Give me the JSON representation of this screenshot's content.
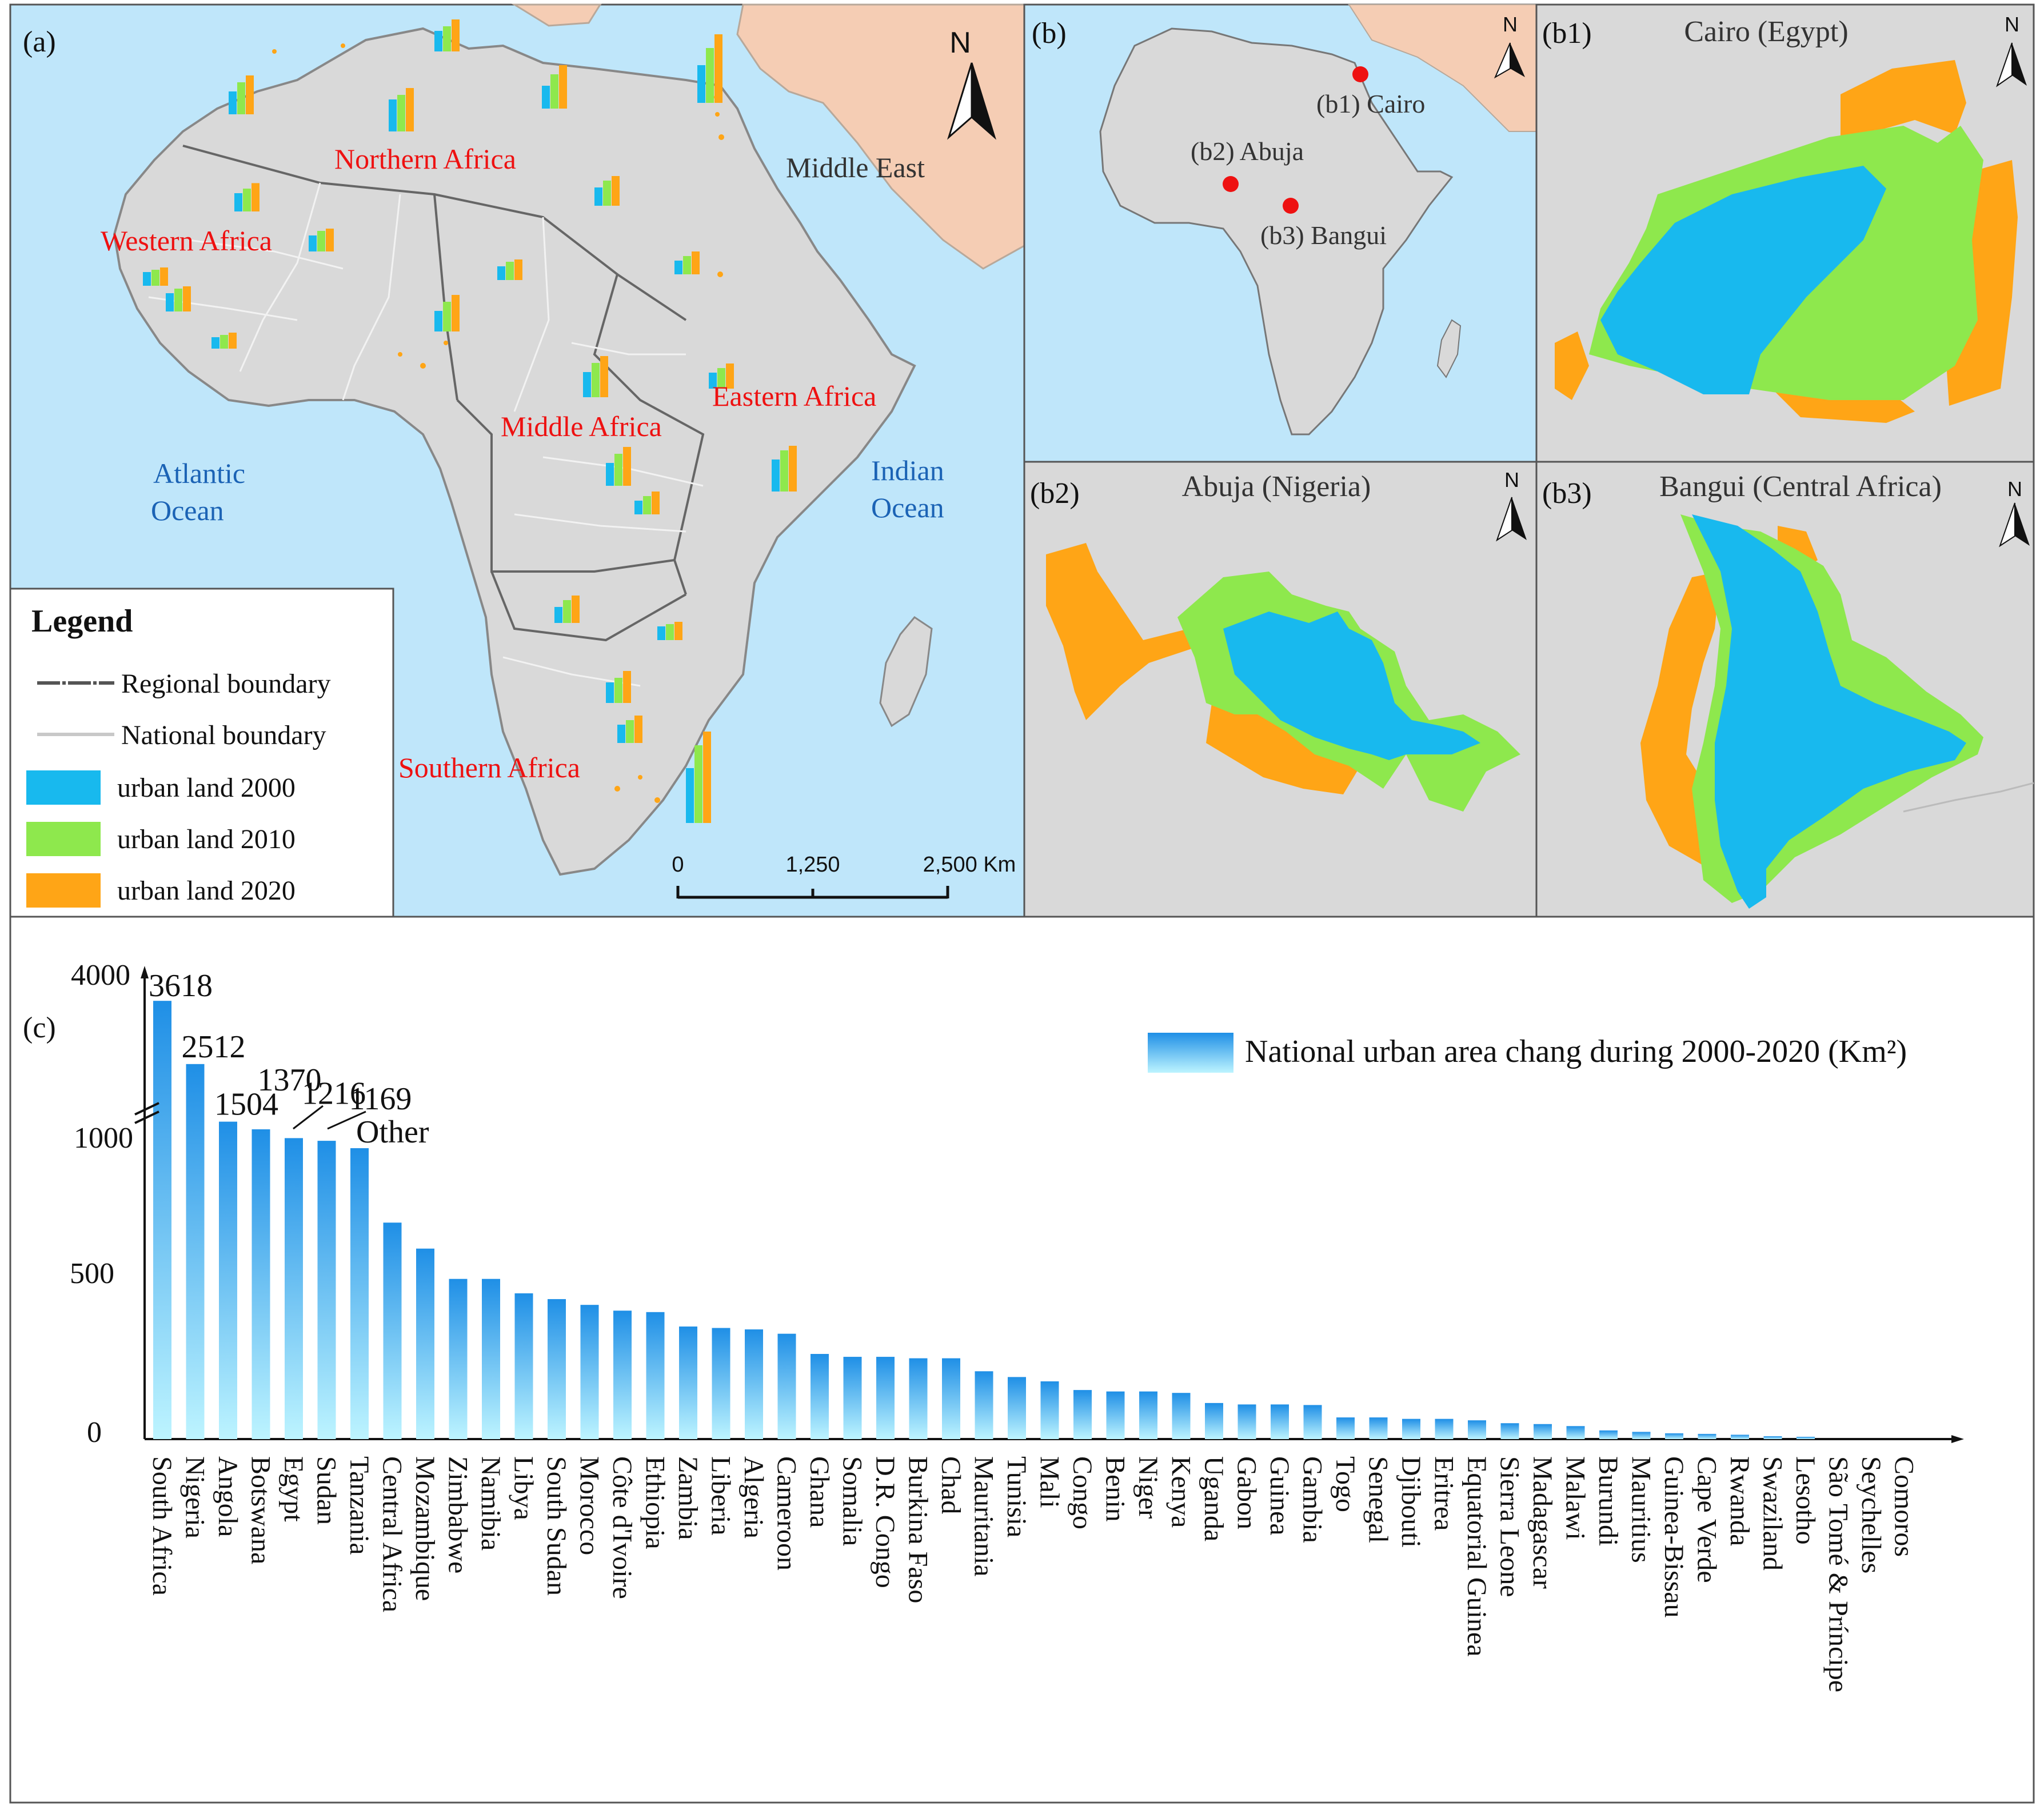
{
  "colors": {
    "ocean": "#bfe6fa",
    "land": "#d9d9d9",
    "middle_east": "#f5cdb4",
    "urban2000": "#18b9ee",
    "urban2010": "#8ee84d",
    "urban2020": "#ffa516",
    "region_label": "#ee1111",
    "ocean_label": "#1b63b5",
    "bar_top": "#1f8fe6",
    "bar_bottom": "#bdf4ff",
    "city_dot": "#ee1111"
  },
  "panel_a": {
    "label": "(a)",
    "regions": [
      "Northern Africa",
      "Western Africa",
      "Middle Africa",
      "Eastern Africa",
      "Southern Africa"
    ],
    "oceans": {
      "atlantic_1": "Atlantic",
      "atlantic_2": "Ocean",
      "indian_1": "Indian",
      "indian_2": "Ocean"
    },
    "middle_east": "Middle East",
    "north": "N",
    "scale": [
      "0",
      "1,250",
      "2,500 Km"
    ],
    "legend": {
      "title": "Legend",
      "regional": "Regional boundary",
      "national": "National boundary",
      "u2000": "urban land 2000",
      "u2010": "urban land 2010",
      "u2020": "urban land 2020"
    }
  },
  "panel_b": {
    "label": "(b)",
    "north": "N",
    "cities": [
      "(b1) Cairo",
      "(b2) Abuja",
      "(b3) Bangui"
    ]
  },
  "panel_b1": {
    "label": "(b1)",
    "title": "Cairo (Egypt)",
    "north": "N"
  },
  "panel_b2": {
    "label": "(b2)",
    "title": "Abuja (Nigeria)",
    "north": "N"
  },
  "panel_b3": {
    "label": "(b3)",
    "title": "Bangui (Central Africa)",
    "north": "N"
  },
  "panel_c": {
    "label": "(c)"
  },
  "chart_data": {
    "type": "bar",
    "title": "",
    "legend": "National urban area chang during 2000-2020 (Km²)",
    "xlabel": "",
    "ylabel": "",
    "y_ticks": [
      "0",
      "500",
      "1000",
      "4000"
    ],
    "ylim": [
      0,
      4000
    ],
    "axis_break": [
      1000,
      1000
    ],
    "categories": [
      "South Africa",
      "Nigeria",
      "Angola",
      "Botswana",
      "Egypt",
      "Sudan",
      "Tanzania",
      "Central Africa",
      "Mozambique",
      "Zimbabwe",
      "Namibia",
      "Libya",
      "South Sudan",
      "Morocco",
      "Côte d'Ivoire",
      "Ethiopia",
      "Zambia",
      "Liberia",
      "Algeria",
      "Cameroon",
      "Ghana",
      "Somalia",
      "D.R. Congo",
      "Burkina Faso",
      "Chad",
      "Mauritania",
      "Tunisia",
      "Mali",
      "Congo",
      "Benin",
      "Niger",
      "Kenya",
      "Uganda",
      "Gabon",
      "Guinea",
      "Gambia",
      "Togo",
      "Senegal",
      "Djibouti",
      "Eritrea",
      "Equatorial Guinea",
      "Sierra Leone",
      "Madagascar",
      "Malawi",
      "Burundi",
      "Mauritius",
      "Guinea-Bissau",
      "Cape Verde",
      "Rwanda",
      "Swaziland",
      "Lesotho",
      "São Tomé & Príncipe",
      "Seychelles",
      "Comoros"
    ],
    "values": [
      3618,
      2512,
      1504,
      1370,
      1216,
      1169,
      1040,
      750,
      660,
      555,
      555,
      505,
      485,
      465,
      445,
      440,
      390,
      385,
      380,
      365,
      295,
      285,
      285,
      280,
      280,
      235,
      215,
      200,
      170,
      165,
      165,
      160,
      125,
      120,
      120,
      118,
      75,
      75,
      70,
      70,
      65,
      55,
      52,
      45,
      30,
      25,
      20,
      18,
      15,
      10,
      8,
      0,
      0,
      0
    ],
    "data_labels": [
      {
        "index": 0,
        "text": "3618"
      },
      {
        "index": 1,
        "text": "2512"
      },
      {
        "index": 2,
        "text": "1504"
      },
      {
        "index": 3,
        "text": "1370"
      },
      {
        "index": 4,
        "text": "1216"
      },
      {
        "index": 5,
        "text": "1169"
      },
      {
        "index": 6,
        "text": "Other"
      }
    ]
  },
  "mini_bars_a": [
    {
      "v": [
        0.45,
        0.55,
        0.7
      ]
    },
    {
      "v": [
        0.5,
        0.7,
        0.85
      ]
    },
    {
      "v": [
        0.7,
        0.8,
        0.95
      ]
    },
    {
      "v": [
        0.4,
        0.5,
        0.62
      ]
    },
    {
      "v": [
        0.35,
        0.45,
        0.5
      ]
    },
    {
      "v": [
        0.5,
        0.75,
        0.95
      ]
    },
    {
      "v": [
        0.3,
        0.35,
        0.4
      ]
    },
    {
      "v": [
        0.3,
        0.4,
        0.45
      ]
    },
    {
      "v": [
        0.55,
        0.8,
        1.0
      ]
    },
    {
      "v": [
        0.4,
        0.5,
        0.55
      ]
    },
    {
      "v": [
        0.25,
        0.3,
        0.35
      ]
    },
    {
      "v": [
        0.45,
        0.65,
        0.8
      ]
    },
    {
      "v": [
        0.3,
        0.4,
        0.5
      ]
    },
    {
      "v": [
        0.35,
        0.45,
        0.55
      ]
    },
    {
      "v": [
        0.55,
        0.75,
        0.9
      ]
    },
    {
      "v": [
        0.4,
        0.55,
        0.65
      ]
    },
    {
      "v": [
        0.6,
        0.85,
        1.0
      ]
    },
    {
      "v": [
        0.5,
        0.7,
        0.85
      ]
    },
    {
      "v": [
        0.45,
        0.55,
        0.7
      ]
    },
    {
      "v": [
        0.35,
        0.5,
        0.6
      ]
    },
    {
      "v": [
        0.3,
        0.4,
        0.5
      ]
    },
    {
      "v": [
        0.7,
        0.9,
        1.0
      ]
    },
    {
      "v": [
        0.3,
        0.35,
        0.4
      ]
    },
    {
      "v": [
        0.4,
        0.5,
        0.6
      ]
    }
  ]
}
